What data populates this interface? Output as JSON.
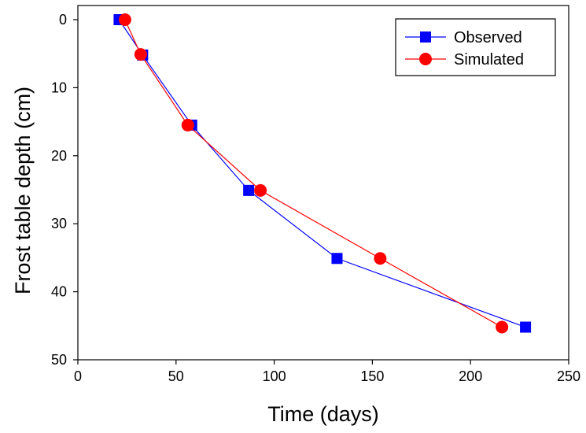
{
  "chart_data": {
    "type": "line",
    "xlabel": "Time (days)",
    "ylabel": "Frost table depth (cm)",
    "xlim": [
      0,
      250
    ],
    "ylim": [
      0,
      50
    ],
    "y_inverted": true,
    "xticks": [
      0,
      50,
      100,
      150,
      200,
      250
    ],
    "yticks": [
      0,
      10,
      20,
      30,
      40,
      50
    ],
    "grid": false,
    "legend_position": "top-right",
    "series": [
      {
        "name": "Observed",
        "color": "#0000ff",
        "marker": "square",
        "x": [
          21,
          33,
          58,
          87,
          132,
          228
        ],
        "y": [
          0,
          5.2,
          15.5,
          25.1,
          35.1,
          45.2
        ]
      },
      {
        "name": "Simulated",
        "color": "#ff0000",
        "marker": "circle",
        "x": [
          24,
          32,
          56,
          93,
          154,
          216
        ],
        "y": [
          0,
          5.1,
          15.5,
          25.1,
          35.1,
          45.2
        ]
      }
    ]
  }
}
